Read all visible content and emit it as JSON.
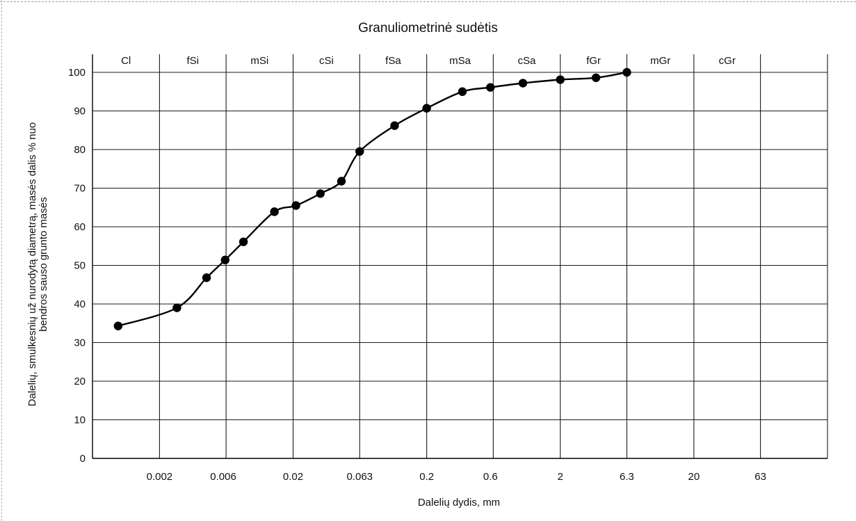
{
  "chart_data": {
    "type": "line",
    "title": "Granuliometrinė sudėtis",
    "xlabel": "Dalelių dydis, mm",
    "ylabel_lines": [
      "Dalelių, smulkesnių už nurodytą diametrą, masės dalis  % nuo",
      "bendros sauso grunto masės"
    ],
    "x_scale": "log",
    "xlim": [
      0.00063,
      200
    ],
    "ylim": [
      0,
      100
    ],
    "yticks": [
      0,
      10,
      20,
      30,
      40,
      50,
      60,
      70,
      80,
      90,
      100
    ],
    "xticks": [
      {
        "value": 0.002,
        "label": "0.002"
      },
      {
        "value": 0.006,
        "label": "0.006"
      },
      {
        "value": 0.02,
        "label": "0.02"
      },
      {
        "value": 0.063,
        "label": "0.063"
      },
      {
        "value": 0.2,
        "label": "0.2"
      },
      {
        "value": 0.6,
        "label": "0.6"
      },
      {
        "value": 2,
        "label": "2"
      },
      {
        "value": 6.3,
        "label": "6.3"
      },
      {
        "value": 20,
        "label": "20"
      },
      {
        "value": 63,
        "label": "63"
      }
    ],
    "fraction_bounds": [
      0.002,
      0.0063,
      0.02,
      0.063,
      0.2,
      0.63,
      2,
      6.3,
      20,
      63,
      200
    ],
    "fractions": [
      {
        "label": "Cl",
        "lo": 0.00063,
        "hi": 0.002
      },
      {
        "label": "fSi",
        "lo": 0.002,
        "hi": 0.0063
      },
      {
        "label": "mSi",
        "lo": 0.0063,
        "hi": 0.02
      },
      {
        "label": "cSi",
        "lo": 0.02,
        "hi": 0.063
      },
      {
        "label": "fSa",
        "lo": 0.063,
        "hi": 0.2
      },
      {
        "label": "mSa",
        "lo": 0.2,
        "hi": 0.63
      },
      {
        "label": "cSa",
        "lo": 0.63,
        "hi": 2
      },
      {
        "label": "fGr",
        "lo": 2,
        "hi": 6.3
      },
      {
        "label": "mGr",
        "lo": 6.3,
        "hi": 20
      },
      {
        "label": "cGr",
        "lo": 20,
        "hi": 63
      }
    ],
    "series": [
      {
        "points": [
          {
            "x": 0.00098,
            "y": 34.3
          },
          {
            "x": 0.0027,
            "y": 39
          },
          {
            "x": 0.0045,
            "y": 46.8
          },
          {
            "x": 0.0062,
            "y": 51.4
          },
          {
            "x": 0.0085,
            "y": 56.1
          },
          {
            "x": 0.0145,
            "y": 63.9
          },
          {
            "x": 0.021,
            "y": 65.5
          },
          {
            "x": 0.032,
            "y": 68.6
          },
          {
            "x": 0.046,
            "y": 71.8
          },
          {
            "x": 0.063,
            "y": 79.5
          },
          {
            "x": 0.115,
            "y": 86.2
          },
          {
            "x": 0.2,
            "y": 90.7
          },
          {
            "x": 0.37,
            "y": 95
          },
          {
            "x": 0.6,
            "y": 96.1
          },
          {
            "x": 1.05,
            "y": 97.2
          },
          {
            "x": 2,
            "y": 98.1
          },
          {
            "x": 3.7,
            "y": 98.6
          },
          {
            "x": 6.3,
            "y": 100
          }
        ]
      }
    ]
  }
}
